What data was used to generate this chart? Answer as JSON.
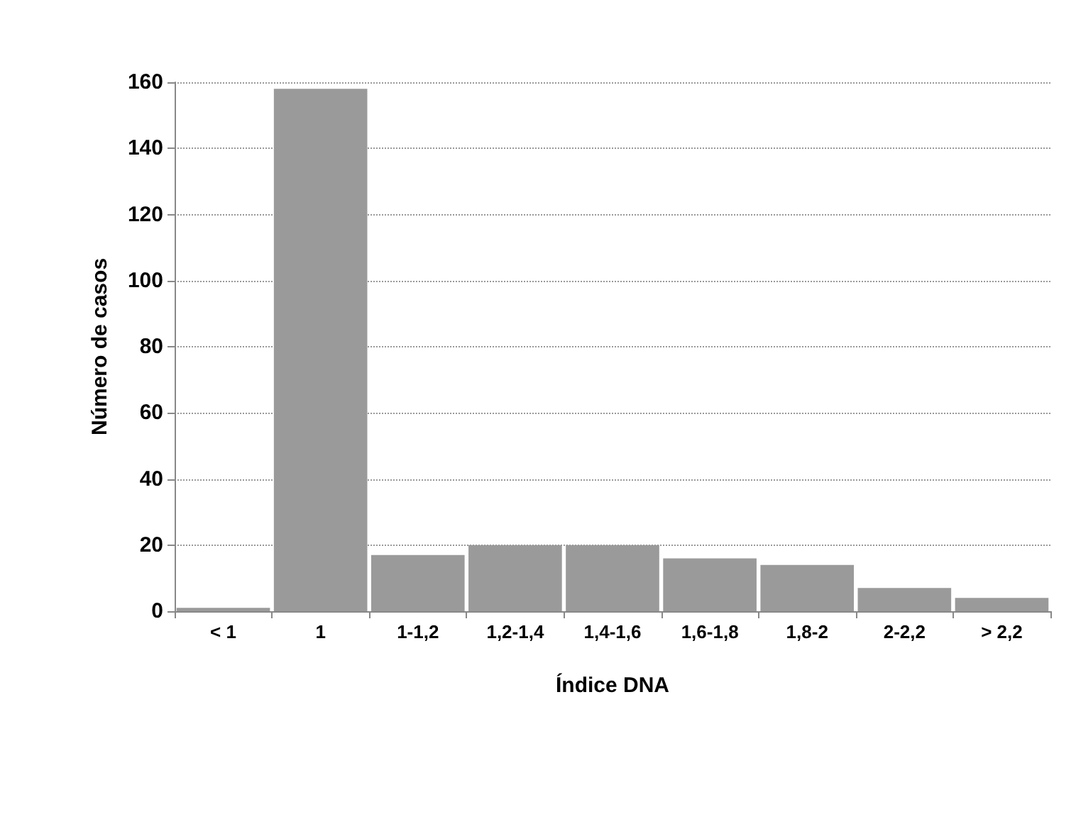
{
  "chart_data": {
    "type": "bar",
    "xlabel": "Índice DNA",
    "ylabel": "Número de casos",
    "categories": [
      "< 1",
      "1",
      "1-1,2",
      "1,2-1,4",
      "1,4-1,6",
      "1,6-1,8",
      "1,8-2",
      "2-2,2",
      "> 2,2"
    ],
    "values": [
      1,
      158,
      17,
      20,
      20,
      16,
      14,
      7,
      4
    ],
    "color": "#9a9a9a",
    "ylim": [
      0,
      160
    ],
    "yticks": [
      0,
      20,
      40,
      60,
      80,
      100,
      120,
      140,
      160
    ],
    "grid": "y",
    "line_style": "dotted"
  }
}
